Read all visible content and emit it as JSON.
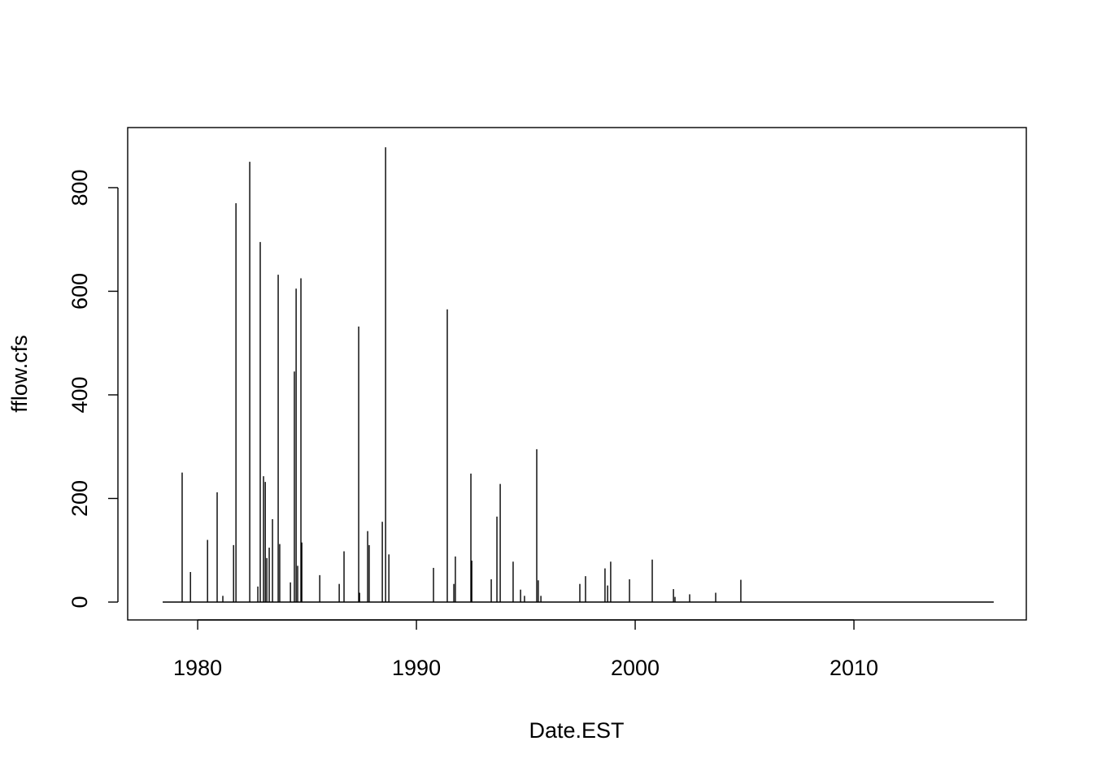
{
  "chart_data": {
    "type": "spike",
    "x_label": "Date.EST",
    "y_label": "fflow.cfs",
    "color": "#000000",
    "x": [
      1978.4,
      1979.29,
      1979.67,
      1980.45,
      1980.89,
      1981.15,
      1981.64,
      1981.75,
      1982.38,
      1982.75,
      1982.86,
      1983.01,
      1983.09,
      1983.16,
      1983.27,
      1983.42,
      1983.68,
      1983.75,
      1984.24,
      1984.42,
      1984.5,
      1984.57,
      1984.72,
      1984.76,
      1985.58,
      1986.47,
      1986.69,
      1987.36,
      1987.4,
      1987.77,
      1987.84,
      1988.44,
      1988.59,
      1988.74,
      1990.78,
      1991.41,
      1991.71,
      1991.78,
      1992.49,
      1992.53,
      1993.42,
      1993.68,
      1993.83,
      1994.42,
      1994.76,
      1994.94,
      1995.5,
      1995.57,
      1995.69,
      1997.47,
      1997.73,
      1998.62,
      1998.74,
      1998.88,
      1999.74,
      2000.78,
      2001.75,
      2001.82,
      2002.49,
      2003.68,
      2004.83,
      2016.39
    ],
    "values": [
      0,
      250,
      58,
      120,
      212,
      12,
      110,
      770,
      850,
      30,
      695,
      243,
      232,
      85,
      105,
      160,
      632,
      112,
      38,
      445,
      605,
      70,
      625,
      115,
      52,
      35,
      98,
      532,
      18,
      137,
      110,
      155,
      878,
      92,
      66,
      565,
      35,
      88,
      248,
      80,
      44,
      165,
      228,
      78,
      24,
      12,
      295,
      42,
      12,
      35,
      50,
      65,
      32,
      78,
      44,
      82,
      25,
      10,
      15,
      18,
      43,
      0
    ],
    "xlim": [
      1976.8,
      2017.88
    ],
    "xticks": [
      1980,
      1990,
      2000,
      2010
    ],
    "ylim": [
      -34.5,
      916
    ],
    "yticks": [
      0,
      200,
      400,
      600,
      800
    ]
  }
}
